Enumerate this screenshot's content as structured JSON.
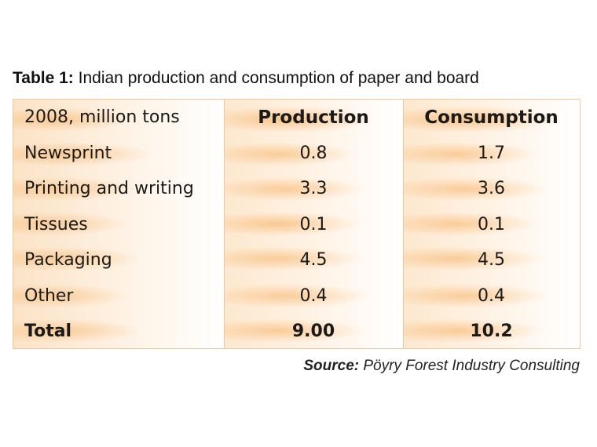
{
  "caption": {
    "lead": "Table 1:",
    "text": "Indian production and consumption of paper and board"
  },
  "table": {
    "header": {
      "label": "2008, million tons",
      "production": "Production",
      "consumption": "Consumption"
    },
    "rows": [
      {
        "label": "Newsprint",
        "production": "0.8",
        "consumption": "1.7"
      },
      {
        "label": "Printing and writing",
        "production": "3.3",
        "consumption": "3.6"
      },
      {
        "label": "Tissues",
        "production": "0.1",
        "consumption": "0.1"
      },
      {
        "label": "Packaging",
        "production": "4.5",
        "consumption": "4.5"
      },
      {
        "label": "Other",
        "production": "0.4",
        "consumption": "0.4"
      }
    ],
    "total": {
      "label": "Total",
      "production": "9.00",
      "consumption": "10.2"
    }
  },
  "source": {
    "lead": "Source:",
    "text": "Pöyry Forest Industry Consulting"
  },
  "colors": {
    "accent": "#f6aa55",
    "border": "#f2c99a"
  }
}
